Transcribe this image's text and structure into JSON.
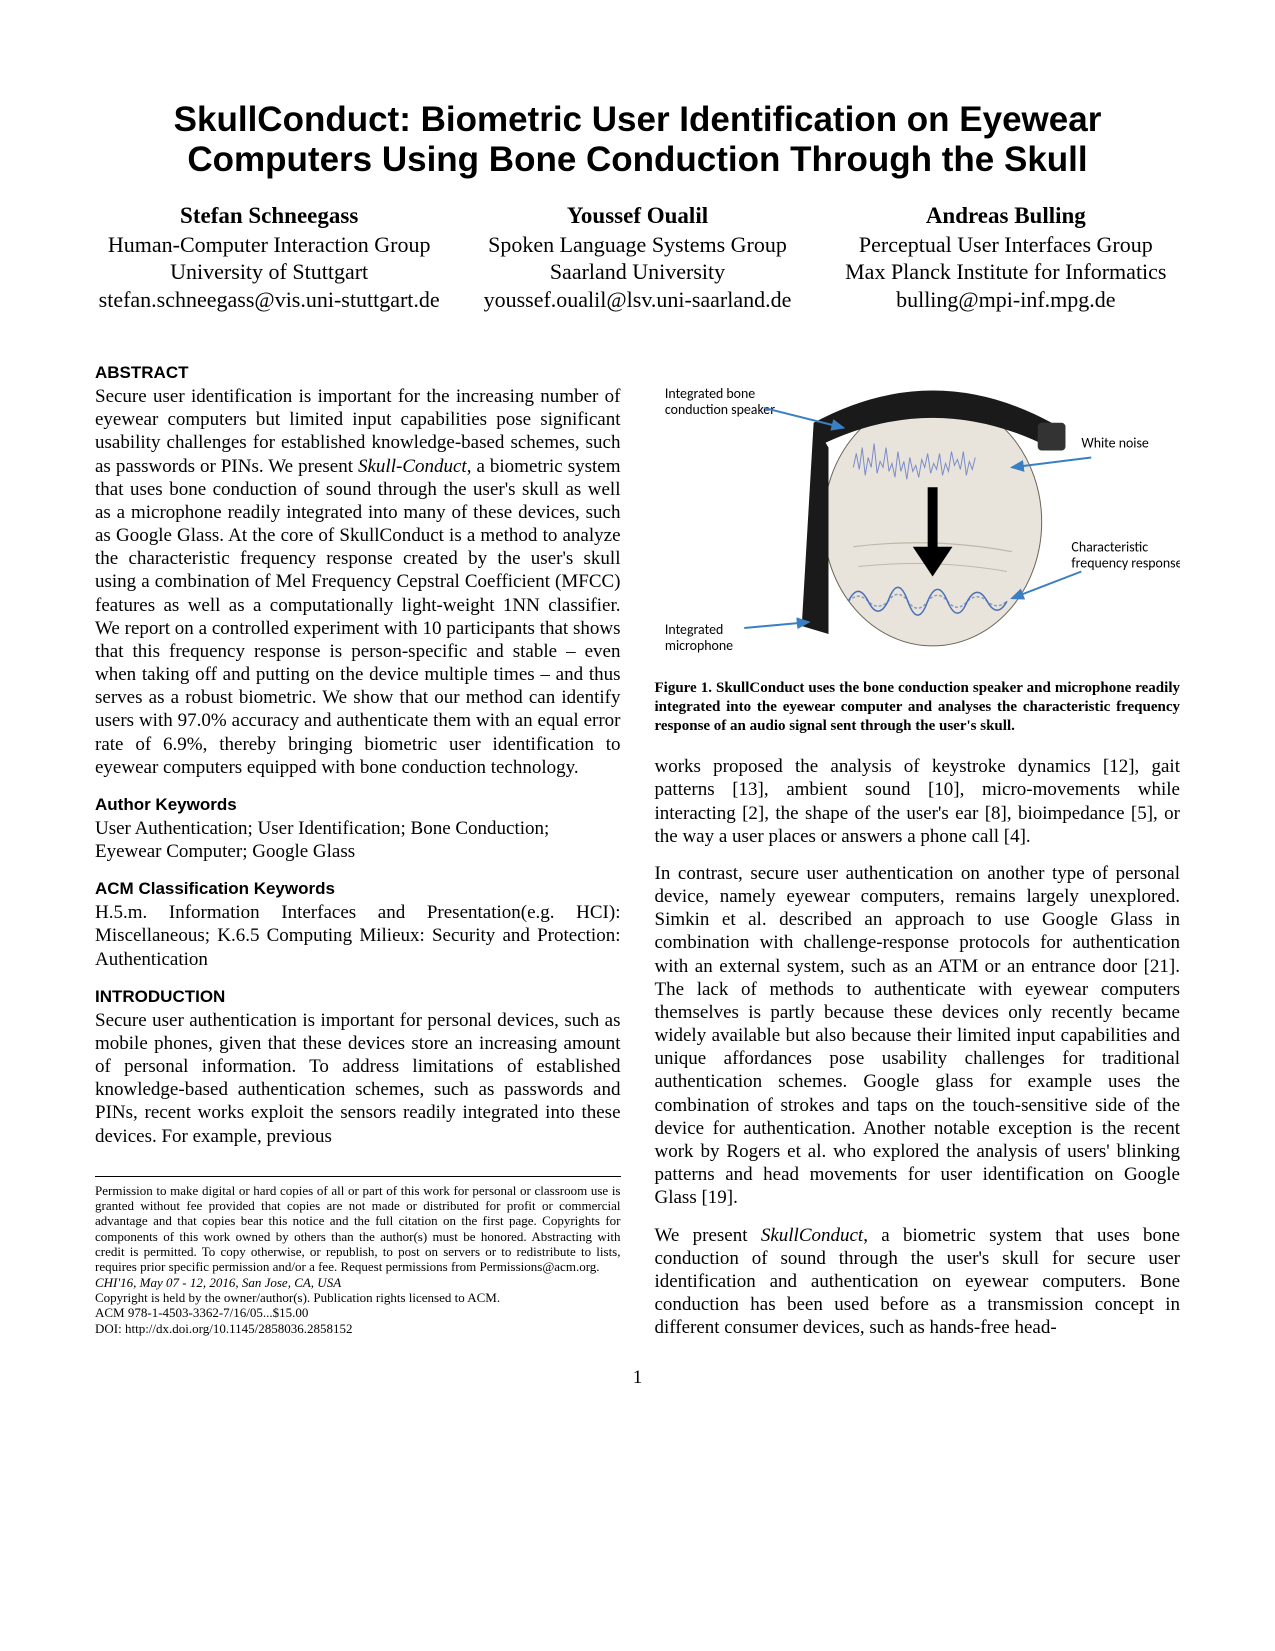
{
  "title": "SkullConduct: Biometric User Identification on Eyewear Computers Using Bone Conduction Through the Skull",
  "authors": [
    {
      "name": "Stefan Schneegass",
      "aff1": "Human-Computer Interaction Group",
      "aff2": "University of Stuttgart",
      "email": "stefan.schneegass@vis.uni-stuttgart.de"
    },
    {
      "name": "Youssef Oualil",
      "aff1": "Spoken Language Systems Group",
      "aff2": "Saarland University",
      "email": "youssef.oualil@lsv.uni-saarland.de"
    },
    {
      "name": "Andreas Bulling",
      "aff1": "Perceptual User Interfaces Group",
      "aff2": "Max Planck Institute for Informatics",
      "email": "bulling@mpi-inf.mpg.de"
    }
  ],
  "sections": {
    "abstract_head": "ABSTRACT",
    "abstract_body": "Secure user identification is important for the increasing number of eyewear computers but limited input capabilities pose significant usability challenges for established knowledge-based schemes, such as passwords or PINs. We present SkullConduct, a biometric system that uses bone conduction of sound through the user's skull as well as a microphone readily integrated into many of these devices, such as Google Glass. At the core of SkullConduct is a method to analyze the characteristic frequency response created by the user's skull using a combination of Mel Frequency Cepstral Coefficient (MFCC) features as well as a computationally light-weight 1NN classifier. We report on a controlled experiment with 10 participants that shows that this frequency response is person-specific and stable – even when taking off and putting on the device multiple times – and thus serves as a robust biometric. We show that our method can identify users with 97.0% accuracy and authenticate them with an equal error rate of 6.9%, thereby bringing biometric user identification to eyewear computers equipped with bone conduction technology.",
    "author_kw_head": "Author Keywords",
    "author_kw_body": "User Authentication; User Identification; Bone Conduction; Eyewear Computer; Google Glass",
    "acm_head": "ACM Classification Keywords",
    "acm_body": "H.5.m. Information Interfaces and Presentation(e.g. HCI): Miscellaneous; K.6.5 Computing Milieux: Security and Protection: Authentication",
    "intro_head": "INTRODUCTION",
    "intro_body1": "Secure user authentication is important for personal devices, such as mobile phones, given that these devices store an increasing amount of personal information. To address limitations of established knowledge-based authentication schemes, such as passwords and PINs, recent works exploit the sensors readily integrated into these devices. For example, previous",
    "right_p1": "works proposed the analysis of keystroke dynamics [12], gait patterns [13], ambient sound [10], micro-movements while interacting [2], the shape of the user's ear [8], bioimpedance [5], or the way a user places or answers a phone call [4].",
    "right_p2": "In contrast, secure user authentication on another type of personal device, namely eyewear computers, remains largely unexplored. Simkin et al. described an approach to use Google Glass in combination with challenge-response protocols for authentication with an external system, such as an ATM or an entrance door [21]. The lack of methods to authenticate with eyewear computers themselves is partly because these devices only recently became widely available but also because their limited input capabilities and unique affordances pose usability challenges for traditional authentication schemes. Google glass for example uses the combination of strokes and taps on the touch-sensitive side of the device for authentication. Another notable exception is the recent work by Rogers et al. who explored the analysis of users' blinking patterns and head movements for user identification on Google Glass [19].",
    "right_p3": "We present SkullConduct, a biometric system that uses bone conduction of sound through the user's skull for secure user identification and authentication on eyewear computers. Bone conduction has been used before as a transmission concept in different consumer devices, such as hands-free head-"
  },
  "figure": {
    "caption": "Figure 1. SkullConduct uses the bone conduction speaker and microphone readily integrated into the eyewear computer and analyses the characteristic frequency response of an audio signal sent through the user's skull.",
    "labels": {
      "speaker": "Integrated bone conduction speaker",
      "noise": "White noise",
      "response": "Characteristic frequency response",
      "mic": "Integrated microphone"
    },
    "colors": {
      "skull_fill": "#e8e3db",
      "skull_stroke": "#6b6458",
      "arrow_blue": "#3a7fc4",
      "wave1": "#7b8cc9",
      "wave2": "#4a6fb5",
      "glass_frame": "#1a1a1a"
    }
  },
  "permission": {
    "text": "Permission to make digital or hard copies of all or part of this work for personal or classroom use is granted without fee provided that copies are not made or distributed for profit or commercial advantage and that copies bear this notice and the full citation on the first page. Copyrights for components of this work owned by others than the author(s) must be honored. Abstracting with credit is permitted. To copy otherwise, or republish, to post on servers or to redistribute to lists, requires prior specific permission and/or a fee. Request permissions from Permissions@acm.org.",
    "venue": "CHI'16, May 07 - 12, 2016, San Jose, CA, USA",
    "copyright": "Copyright is held by the owner/author(s). Publication rights licensed to ACM.",
    "acm_line": "ACM 978-1-4503-3362-7/16/05...$15.00",
    "doi": "DOI: http://dx.doi.org/10.1145/2858036.2858152"
  },
  "page_number": "1"
}
